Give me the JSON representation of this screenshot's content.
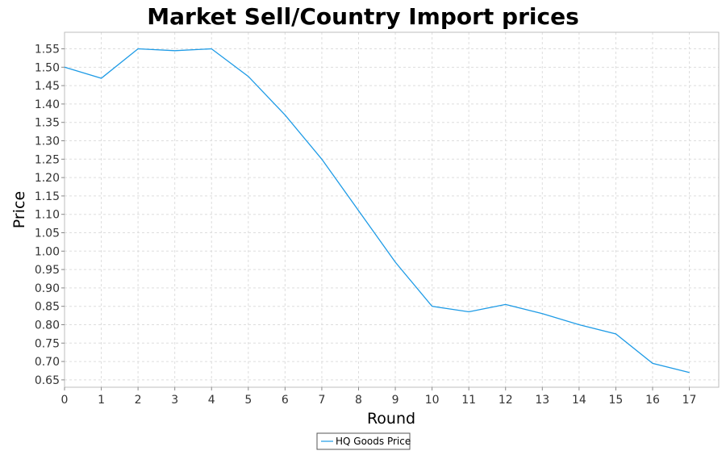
{
  "chart_data": {
    "type": "line",
    "title": "Market Sell/Country Import prices",
    "xlabel": "Round",
    "ylabel": "Price",
    "xlim": [
      0,
      17.8
    ],
    "ylim": [
      0.63,
      1.595
    ],
    "x_ticks": [
      0,
      1,
      2,
      3,
      4,
      5,
      6,
      7,
      8,
      9,
      10,
      11,
      12,
      13,
      14,
      15,
      16,
      17
    ],
    "y_ticks": [
      0.65,
      0.7,
      0.75,
      0.8,
      0.85,
      0.9,
      0.95,
      1.0,
      1.05,
      1.1,
      1.15,
      1.2,
      1.25,
      1.3,
      1.35,
      1.4,
      1.45,
      1.5,
      1.55
    ],
    "y_tick_labels": [
      "0.65",
      "0.70",
      "0.75",
      "0.80",
      "0.85",
      "0.90",
      "0.95",
      "1.00",
      "1.05",
      "1.10",
      "1.15",
      "1.20",
      "1.25",
      "1.30",
      "1.35",
      "1.40",
      "1.45",
      "1.50",
      "1.55"
    ],
    "grid": true,
    "legend_position": "bottom-center",
    "series": [
      {
        "name": "HQ Goods Price",
        "color": "#1e9be6",
        "x": [
          0,
          1,
          2,
          3,
          4,
          5,
          6,
          7,
          8,
          9,
          10,
          11,
          12,
          13,
          14,
          15,
          16,
          17
        ],
        "y": [
          1.5,
          1.47,
          1.55,
          1.545,
          1.55,
          1.475,
          1.37,
          1.25,
          1.11,
          0.97,
          0.85,
          0.835,
          0.855,
          0.83,
          0.8,
          0.775,
          0.695,
          0.67
        ]
      }
    ]
  }
}
